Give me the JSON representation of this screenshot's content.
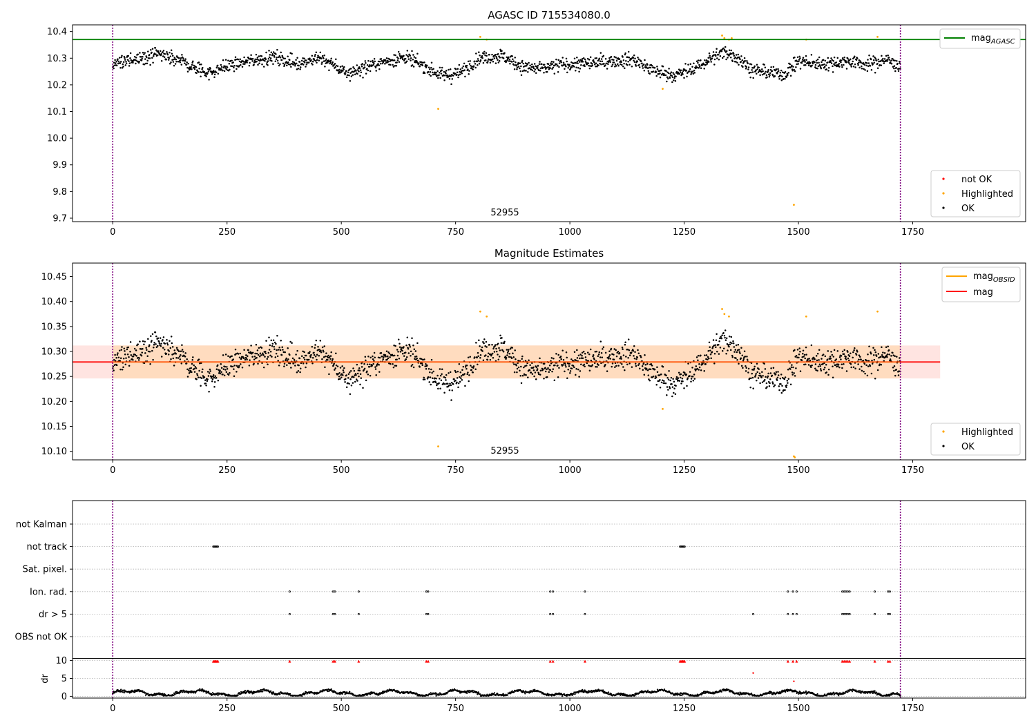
{
  "colors": {
    "ok": "#000000",
    "highlighted": "#ffa500",
    "not_ok": "#ff0000",
    "mag_agasc_line": "#008000",
    "mag_line": "#ff0000",
    "mag_obsid_line": "#ffa500",
    "obs_band": "#ffdab9",
    "band_outer": "#ffe4e1",
    "obs_boundary": "#800080",
    "grid": "#b0b0b0"
  },
  "chart_data": [
    {
      "type": "scatter",
      "title": "AGASC ID 715534080.0",
      "xlim": [
        -88,
        1997
      ],
      "ylim": [
        9.687,
        10.425
      ],
      "x_ticks": [
        "0",
        "250",
        "500",
        "750",
        "1000",
        "1250",
        "1500",
        "1750"
      ],
      "y_ticks": [
        "9.7",
        "9.8",
        "9.9",
        "10.0",
        "10.1",
        "10.2",
        "10.3",
        "10.4"
      ],
      "mag_agasc": 10.37,
      "obs_label": "52955",
      "obs_label_x": 860,
      "obs_bounds": [
        0,
        1723
      ],
      "legend_top": [
        {
          "label": "mag",
          "sub": "AGASC"
        }
      ],
      "legend_bottom": [
        "not OK",
        "Highlighted",
        "OK"
      ],
      "grid": false,
      "series": [
        {
          "name": "OK",
          "note": "~1720 black points, x 0–1723, mag ~10.19–10.37 with wavy pattern"
        },
        {
          "name": "Highlighted",
          "points": [
            [
              712,
              10.11
            ],
            [
              804,
              10.38
            ],
            [
              818,
              10.37
            ],
            [
              1203,
              10.185
            ],
            [
              1333,
              10.385
            ],
            [
              1338,
              10.375
            ],
            [
              1348,
              10.37
            ],
            [
              1354,
              10.375
            ],
            [
              1490,
              9.75
            ],
            [
              1517,
              10.37
            ],
            [
              1673,
              10.38
            ]
          ]
        }
      ]
    },
    {
      "type": "scatter",
      "title": "Magnitude Estimates",
      "xlim": [
        -88,
        1997
      ],
      "ylim": [
        10.083,
        10.477
      ],
      "x_ticks": [
        "0",
        "250",
        "500",
        "750",
        "1000",
        "1250",
        "1500",
        "1750"
      ],
      "y_ticks": [
        "10.10",
        "10.15",
        "10.20",
        "10.25",
        "10.30",
        "10.35",
        "10.40",
        "10.45"
      ],
      "mag": 10.279,
      "mag_obsid": 10.279,
      "band": [
        10.246,
        10.312
      ],
      "band_outer_xmax": 1810,
      "obs_label": "52955",
      "obs_label_x": 860,
      "obs_bounds": [
        0,
        1723
      ],
      "legend_top": [
        {
          "label": "mag",
          "sub": "OBSID"
        },
        {
          "label": "mag",
          "sub": ""
        }
      ],
      "legend_bottom": [
        "Highlighted",
        "OK"
      ],
      "grid": false,
      "series": [
        {
          "name": "OK",
          "note": "same black points as top panel"
        },
        {
          "name": "Highlighted",
          "points": [
            [
              712,
              10.11
            ],
            [
              804,
              10.38
            ],
            [
              818,
              10.37
            ],
            [
              1203,
              10.185
            ],
            [
              1333,
              10.385
            ],
            [
              1338,
              10.375
            ],
            [
              1348,
              10.37
            ],
            [
              1490,
              10.09
            ],
            [
              1492,
              10.088
            ],
            [
              1517,
              10.37
            ],
            [
              1673,
              10.38
            ]
          ]
        }
      ]
    },
    {
      "type": "scatter",
      "title": "",
      "xlim": [
        -88,
        1997
      ],
      "x_ticks": [
        "0",
        "250",
        "500",
        "750",
        "1000",
        "1250",
        "1500",
        "1750"
      ],
      "flag_rows": [
        "not Kalman",
        "not track",
        "Sat. pixel.",
        "Ion. rad.",
        "dr > 5",
        "OBS not OK"
      ],
      "flags": {
        "not Kalman": [],
        "not track": [
          220,
          222,
          224,
          226,
          228,
          230,
          1241,
          1243,
          1245,
          1247,
          1249,
          1251
        ],
        "Sat. pixel.": [],
        "Ion. rad.": [
          387,
          482,
          486,
          538,
          686,
          690,
          957,
          963,
          1033,
          1477,
          1488,
          1496,
          1596,
          1600,
          1604,
          1608,
          1612,
          1667,
          1696,
          1700
        ],
        "dr > 5": [
          387,
          482,
          486,
          538,
          686,
          690,
          957,
          963,
          1033,
          1401,
          1477,
          1488,
          1496,
          1596,
          1600,
          1604,
          1608,
          1612,
          1667,
          1696,
          1700
        ],
        "OBS not OK": []
      },
      "dr_ylabel": "dr",
      "dr_ylim": [
        -0.5,
        10.5
      ],
      "dr_ticks": [
        "0",
        "5",
        "10"
      ],
      "dr_capped_x": [
        220,
        222,
        224,
        226,
        228,
        230,
        387,
        482,
        486,
        538,
        686,
        690,
        957,
        963,
        1033,
        1241,
        1243,
        1245,
        1247,
        1249,
        1251,
        1477,
        1488,
        1496,
        1596,
        1600,
        1604,
        1608,
        1612,
        1667,
        1696,
        1700
      ],
      "dr_outliers": [
        [
          1401,
          6.5
        ],
        [
          1490,
          4.2
        ]
      ]
    }
  ]
}
